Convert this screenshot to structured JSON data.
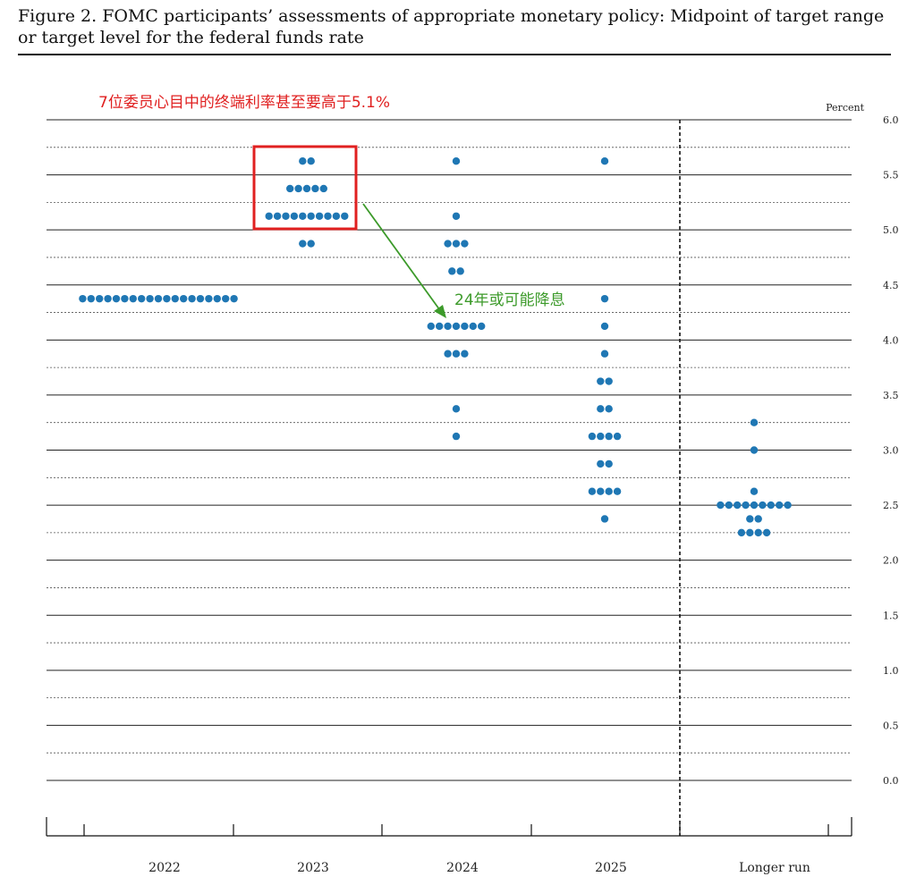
{
  "figure": {
    "caption": "Figure 2.  FOMC participants’ assessments of appropriate monetary policy:  Midpoint of target range or target level for the federal funds rate"
  },
  "chart_data": {
    "type": "scatter",
    "subtype": "dot-plot",
    "ylabel": "Percent",
    "ylim": [
      0,
      6
    ],
    "y_ticks": [
      "0.0",
      "0.5",
      "1.0",
      "1.5",
      "2.0",
      "2.5",
      "3.0",
      "3.5",
      "4.0",
      "4.5",
      "5.0",
      "5.5",
      "6.0"
    ],
    "categories": [
      "2022",
      "2023",
      "2024",
      "2025",
      "Longer run"
    ],
    "series": [
      {
        "category": "2022",
        "points": [
          {
            "y": 4.375,
            "count": 19
          }
        ]
      },
      {
        "category": "2023",
        "points": [
          {
            "y": 5.625,
            "count": 2
          },
          {
            "y": 5.375,
            "count": 5
          },
          {
            "y": 5.125,
            "count": 10
          },
          {
            "y": 4.875,
            "count": 2
          }
        ]
      },
      {
        "category": "2024",
        "points": [
          {
            "y": 5.625,
            "count": 1
          },
          {
            "y": 5.125,
            "count": 1
          },
          {
            "y": 4.875,
            "count": 3
          },
          {
            "y": 4.625,
            "count": 2
          },
          {
            "y": 4.125,
            "count": 7
          },
          {
            "y": 3.875,
            "count": 3
          },
          {
            "y": 3.375,
            "count": 1
          },
          {
            "y": 3.125,
            "count": 1
          }
        ]
      },
      {
        "category": "2025",
        "points": [
          {
            "y": 5.625,
            "count": 1
          },
          {
            "y": 4.375,
            "count": 1
          },
          {
            "y": 4.125,
            "count": 1
          },
          {
            "y": 3.875,
            "count": 1
          },
          {
            "y": 3.625,
            "count": 2
          },
          {
            "y": 3.375,
            "count": 2
          },
          {
            "y": 3.125,
            "count": 4
          },
          {
            "y": 2.875,
            "count": 2
          },
          {
            "y": 2.625,
            "count": 4
          },
          {
            "y": 2.375,
            "count": 1
          }
        ]
      },
      {
        "category": "Longer run",
        "points": [
          {
            "y": 3.25,
            "count": 1
          },
          {
            "y": 3.0,
            "count": 1
          },
          {
            "y": 2.625,
            "count": 1
          },
          {
            "y": 2.5,
            "count": 9
          },
          {
            "y": 2.375,
            "count": 2
          },
          {
            "y": 2.25,
            "count": 4
          }
        ]
      }
    ],
    "annotations": [
      {
        "text": "7位委员心目中的终端利率甚至要高于5.1%",
        "color": "#e02020"
      },
      {
        "text": "24年或可能降息",
        "color": "#3c9a2a"
      }
    ],
    "colors": {
      "dot": "#1f77b4",
      "highlight_box": "#e02020",
      "arrow": "#3c9a2a"
    }
  }
}
